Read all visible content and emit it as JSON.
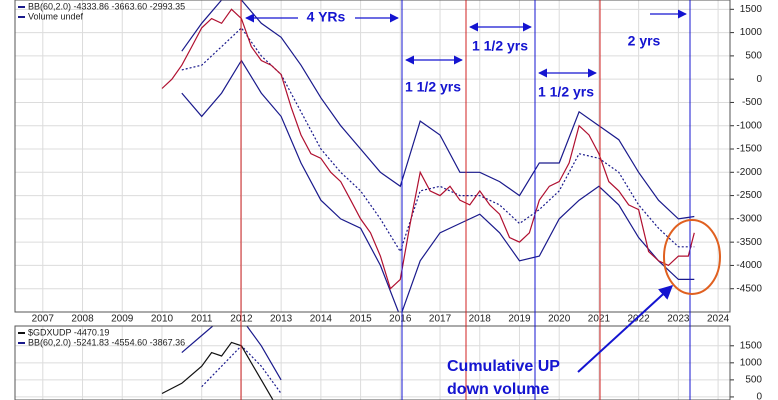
{
  "chart_data": [
    {
      "type": "line",
      "legend": [
        "BB(60,2.0) -4333.86 -3663.60 -2993.35",
        "Volume undef"
      ],
      "xlim": [
        2006.3,
        2024.3
      ],
      "xticks": [
        2007,
        2008,
        2009,
        2010,
        2011,
        2012,
        2013,
        2014,
        2015,
        2016,
        2017,
        2018,
        2019,
        2020,
        2021,
        2022,
        2023,
        2024
      ],
      "ylim": [
        -5000,
        1700
      ],
      "yticks": [
        1500,
        1000,
        500,
        0,
        -500,
        -1000,
        -1500,
        -2000,
        -2500,
        -3000,
        -3500,
        -4000,
        -4500
      ],
      "grid": true,
      "series": [
        {
          "color": "#1a1a8c",
          "x": [
            2010.5,
            2011,
            2011.5,
            2012,
            2012.5,
            2013,
            2013.5,
            2014,
            2014.5,
            2015,
            2015.5,
            2016,
            2016.5,
            2017,
            2017.5,
            2018,
            2018.5,
            2019,
            2019.5,
            2020,
            2020.5,
            2021,
            2021.5,
            2022,
            2022.5,
            2023,
            2023.4
          ],
          "values": [
            600,
            1200,
            1700,
            1700,
            1200,
            900,
            300,
            -400,
            -1000,
            -1500,
            -2000,
            -2300,
            -900,
            -1200,
            -2000,
            -2000,
            -2200,
            -2500,
            -1800,
            -1800,
            -700,
            -1000,
            -1300,
            -2000,
            -2600,
            -3000,
            -2950
          ]
        },
        {
          "color": "#1a1a8c",
          "dash": true,
          "x": [
            2010.5,
            2011,
            2011.5,
            2012,
            2012.5,
            2013,
            2013.5,
            2014,
            2014.5,
            2015,
            2015.5,
            2016,
            2016.5,
            2017,
            2017.5,
            2018,
            2018.5,
            2019,
            2019.5,
            2020,
            2020.5,
            2021,
            2021.5,
            2022,
            2022.5,
            2023,
            2023.4
          ],
          "values": [
            200,
            300,
            700,
            1100,
            500,
            100,
            -700,
            -1500,
            -2000,
            -2400,
            -3000,
            -3700,
            -2400,
            -2300,
            -2500,
            -2500,
            -2700,
            -3100,
            -2800,
            -2400,
            -1600,
            -1700,
            -2000,
            -2700,
            -3200,
            -3600,
            -3600
          ]
        },
        {
          "color": "#1a1a8c",
          "x": [
            2010.5,
            2011,
            2011.5,
            2012,
            2012.5,
            2013,
            2013.5,
            2014,
            2014.5,
            2015,
            2015.5,
            2016,
            2016.5,
            2017,
            2017.5,
            2018,
            2018.5,
            2019,
            2019.5,
            2020,
            2020.5,
            2021,
            2021.5,
            2022,
            2022.5,
            2023,
            2023.4
          ],
          "values": [
            -300,
            -800,
            -300,
            400,
            -300,
            -800,
            -1800,
            -2600,
            -3000,
            -3200,
            -4000,
            -5100,
            -3900,
            -3300,
            -3100,
            -2900,
            -3300,
            -3900,
            -3800,
            -3000,
            -2600,
            -2300,
            -2700,
            -3400,
            -3900,
            -4300,
            -4300
          ]
        },
        {
          "color": "#b01030",
          "x": [
            2010,
            2010.25,
            2010.5,
            2010.75,
            2011,
            2011.25,
            2011.5,
            2011.75,
            2012,
            2012.25,
            2012.5,
            2012.75,
            2013,
            2013.25,
            2013.5,
            2013.75,
            2014,
            2014.25,
            2014.5,
            2014.75,
            2015,
            2015.25,
            2015.5,
            2015.75,
            2016,
            2016.25,
            2016.5,
            2016.75,
            2017,
            2017.25,
            2017.5,
            2017.75,
            2018,
            2018.25,
            2018.5,
            2018.75,
            2019,
            2019.25,
            2019.5,
            2019.75,
            2020,
            2020.25,
            2020.5,
            2020.75,
            2021,
            2021.25,
            2021.5,
            2021.75,
            2022,
            2022.25,
            2022.5,
            2022.75,
            2023,
            2023.25,
            2023.4
          ],
          "values": [
            -200,
            0,
            300,
            700,
            1100,
            1300,
            1200,
            1500,
            1300,
            700,
            400,
            300,
            100,
            -600,
            -1200,
            -1600,
            -1700,
            -2000,
            -2200,
            -2600,
            -3000,
            -3300,
            -3800,
            -4500,
            -4300,
            -3100,
            -2000,
            -2400,
            -2500,
            -2300,
            -2600,
            -2700,
            -2400,
            -2700,
            -2900,
            -3400,
            -3500,
            -3300,
            -2600,
            -2300,
            -2200,
            -1800,
            -1000,
            -1200,
            -1600,
            -2200,
            -2400,
            -2700,
            -2800,
            -3700,
            -3900,
            -4000,
            -3800,
            -3800,
            -3300
          ]
        }
      ]
    },
    {
      "type": "line",
      "legend": [
        "$GDXUDP -4470.19",
        "BB(60,2.0) -5241.83 -4554.60 -3867.36"
      ],
      "xlim": [
        2006.3,
        2024.3
      ],
      "xticks": [
        2007,
        2008,
        2009,
        2010,
        2011,
        2012,
        2013,
        2014,
        2015,
        2016,
        2017,
        2018,
        2019,
        2020,
        2021,
        2022,
        2023,
        2024
      ],
      "ylim": [
        -90,
        2080
      ],
      "yticks": [
        1500,
        1000,
        500,
        0
      ],
      "grid": true,
      "series": [
        {
          "color": "#1a1a8c",
          "x": [
            2010.5,
            2011,
            2011.5,
            2012,
            2012.5,
            2013
          ],
          "values": [
            1300,
            1800,
            2300,
            2300,
            1500,
            500
          ]
        },
        {
          "color": "#1a1a8c",
          "dash": true,
          "x": [
            2011,
            2011.5,
            2012,
            2012.5,
            2013
          ],
          "values": [
            300,
            900,
            1500,
            900,
            100
          ]
        },
        {
          "color": "#111111",
          "x": [
            2010,
            2010.5,
            2011,
            2011.25,
            2011.5,
            2011.75,
            2012,
            2012.25,
            2012.5,
            2012.75,
            2013
          ],
          "values": [
            100,
            400,
            900,
            1300,
            1200,
            1600,
            1500,
            1000,
            500,
            0,
            -500
          ]
        }
      ]
    }
  ],
  "annotations": [
    "4 YRs",
    "1 1/2 yrs",
    "1 1/2 yrs",
    "1 1/2 yrs",
    "2 yrs",
    "Cumulative UP",
    "down volume"
  ]
}
